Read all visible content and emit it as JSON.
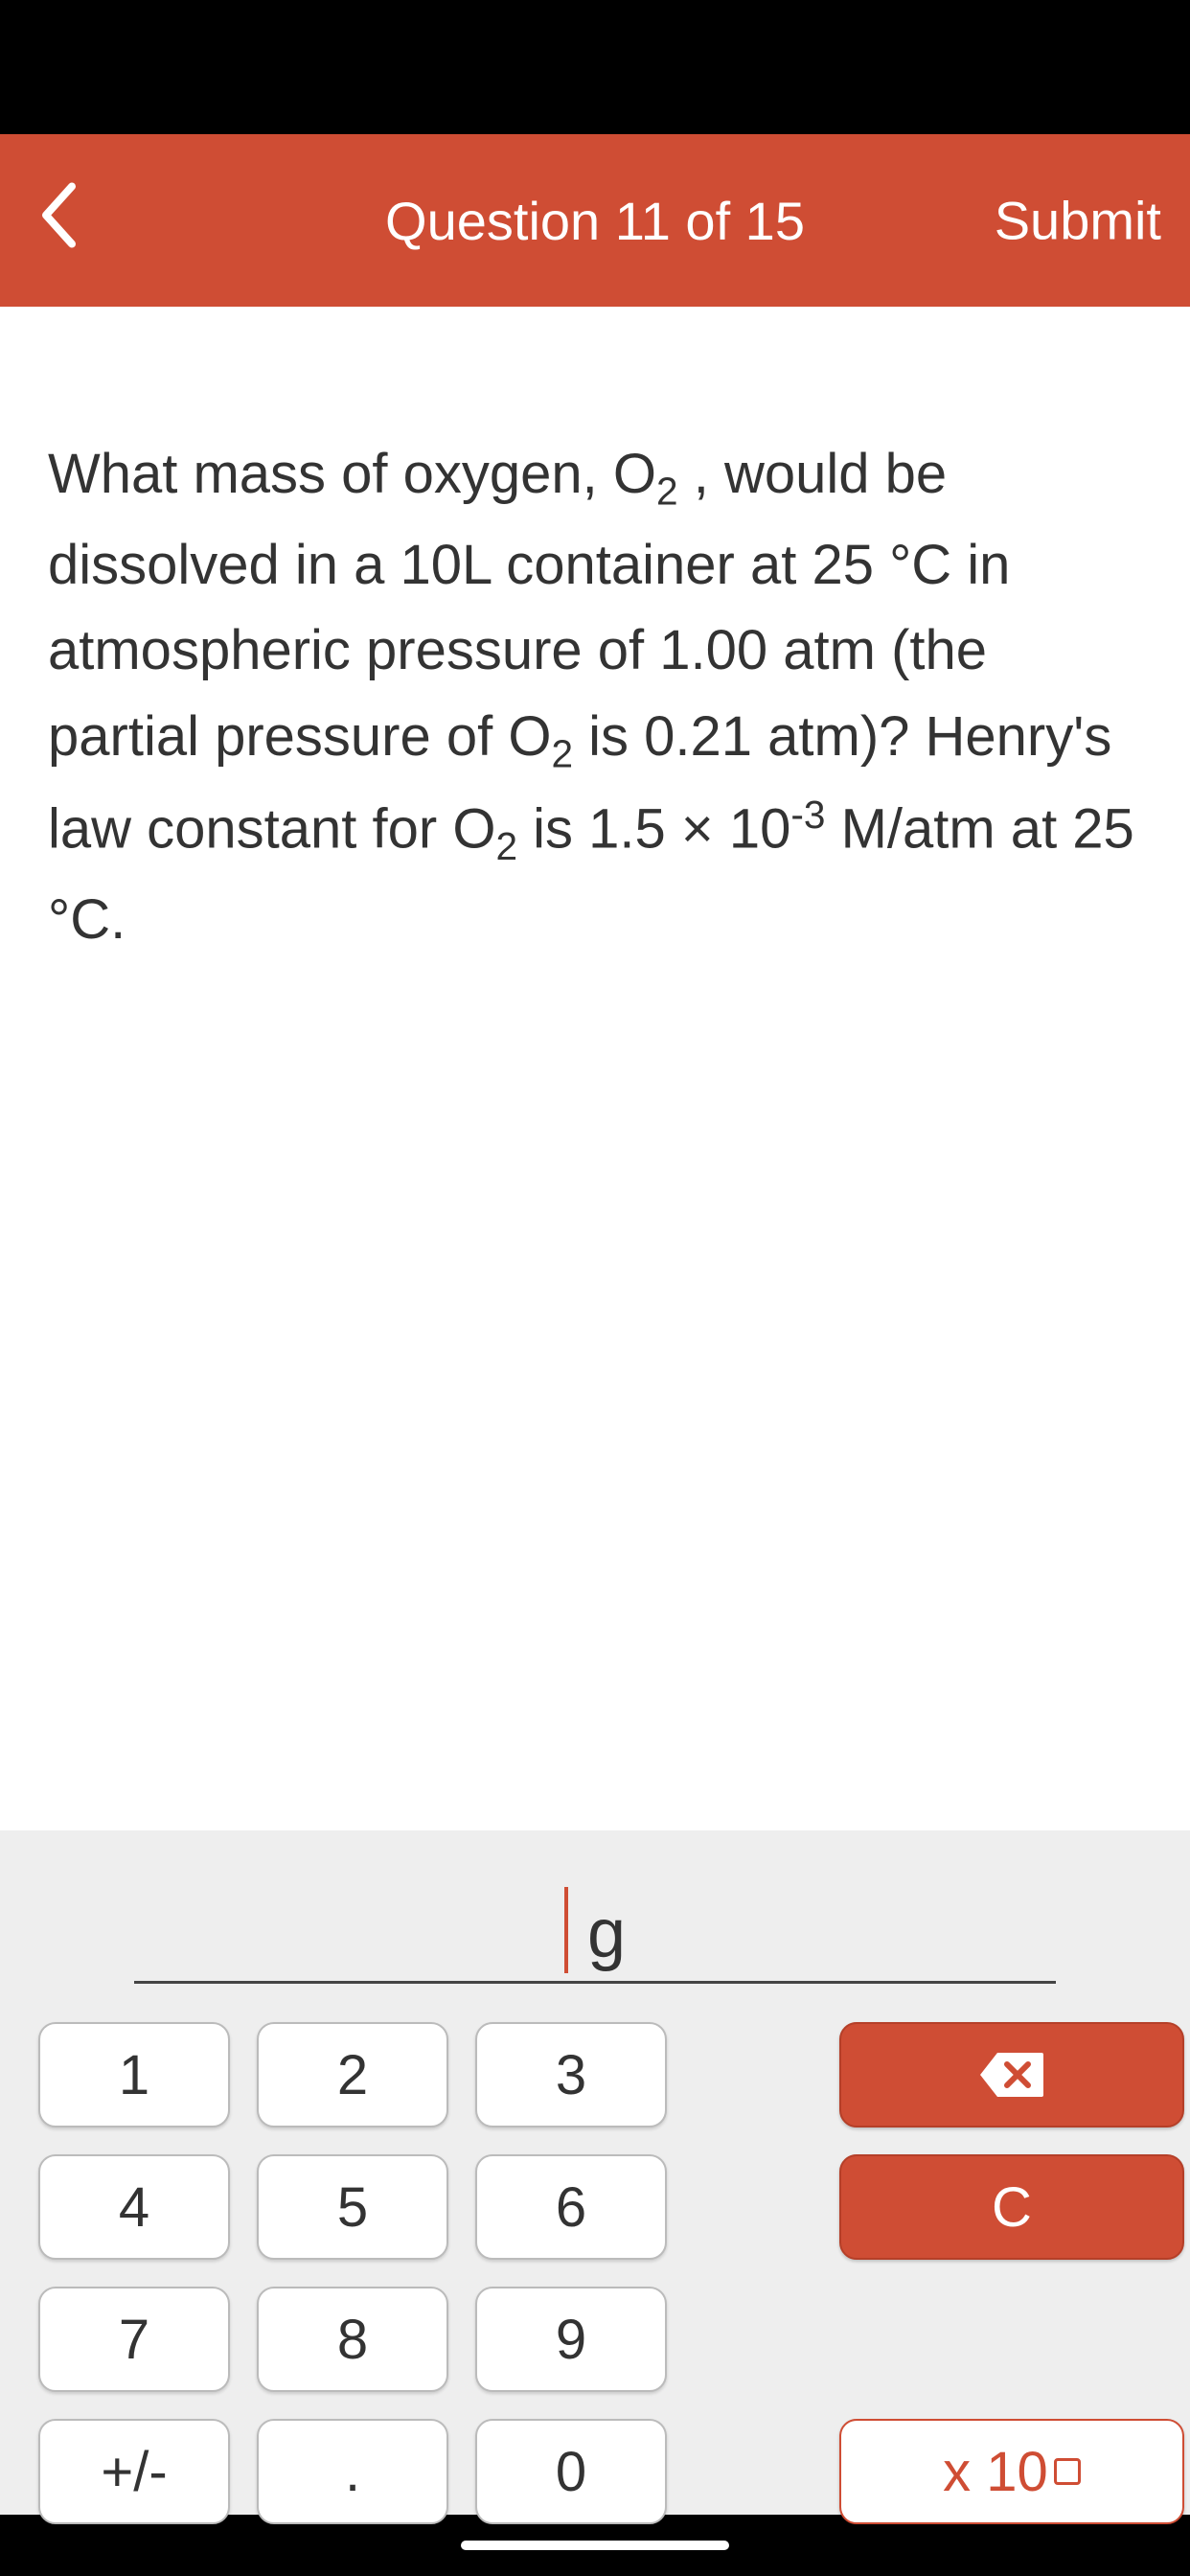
{
  "header": {
    "title": "Question 11 of 15",
    "submit_label": "Submit"
  },
  "question": {
    "text_html": "What mass of oxygen, O<span class='sub'>2</span> , would be dissolved in a 10L container at 25 °C in atmospheric pressure of 1.00 atm (the partial pressure of O<span class='sub'>2</span> is 0.21 atm)? Henry's law constant for O<span class='sub'>2</span> is 1.5 × 10<span class='sup'>-3</span> M/atm at 25 °C."
  },
  "answer": {
    "value": "",
    "unit": "g"
  },
  "keypad": {
    "keys": [
      "1",
      "2",
      "3",
      "4",
      "5",
      "6",
      "7",
      "8",
      "9",
      "+/-",
      ".",
      "0"
    ],
    "clear_label": "C",
    "sci_label": "x 10"
  },
  "colors": {
    "accent": "#cf4d34",
    "background": "#eeeeee",
    "text": "#333333"
  }
}
